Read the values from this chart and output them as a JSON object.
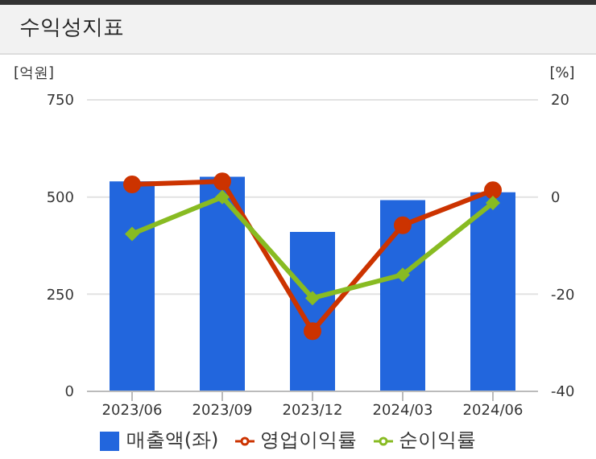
{
  "chart_data": {
    "type": "bar",
    "title": "수익성지표",
    "ylabel": "[억원]",
    "y2label": "[%]",
    "categories": [
      "2023/06",
      "2023/09",
      "2023/12",
      "2024/03",
      "2024/06"
    ],
    "series": [
      {
        "name": "매출액(좌)",
        "color": "#2266dd",
        "values": [
          540,
          552,
          410,
          492,
          512
        ]
      },
      {
        "name": "영업이익률",
        "type": "line",
        "axis": "y2",
        "marker": "circle",
        "color": "#cc3300",
        "values": [
          2.6,
          3.2,
          -27.6,
          -5.8,
          1.4
        ]
      },
      {
        "name": "순이익률",
        "type": "line",
        "axis": "y2",
        "marker": "diamond",
        "color": "#88bb22",
        "values": [
          -7.6,
          0,
          -20.8,
          -16,
          -1.2
        ]
      }
    ],
    "ylim": [
      0,
      750
    ],
    "yticks": [
      0,
      250,
      500,
      750
    ],
    "y2lim": [
      -40,
      20
    ],
    "y2ticks": [
      -40,
      -20,
      0,
      20
    ],
    "grid": "y",
    "legend": "bottom"
  }
}
